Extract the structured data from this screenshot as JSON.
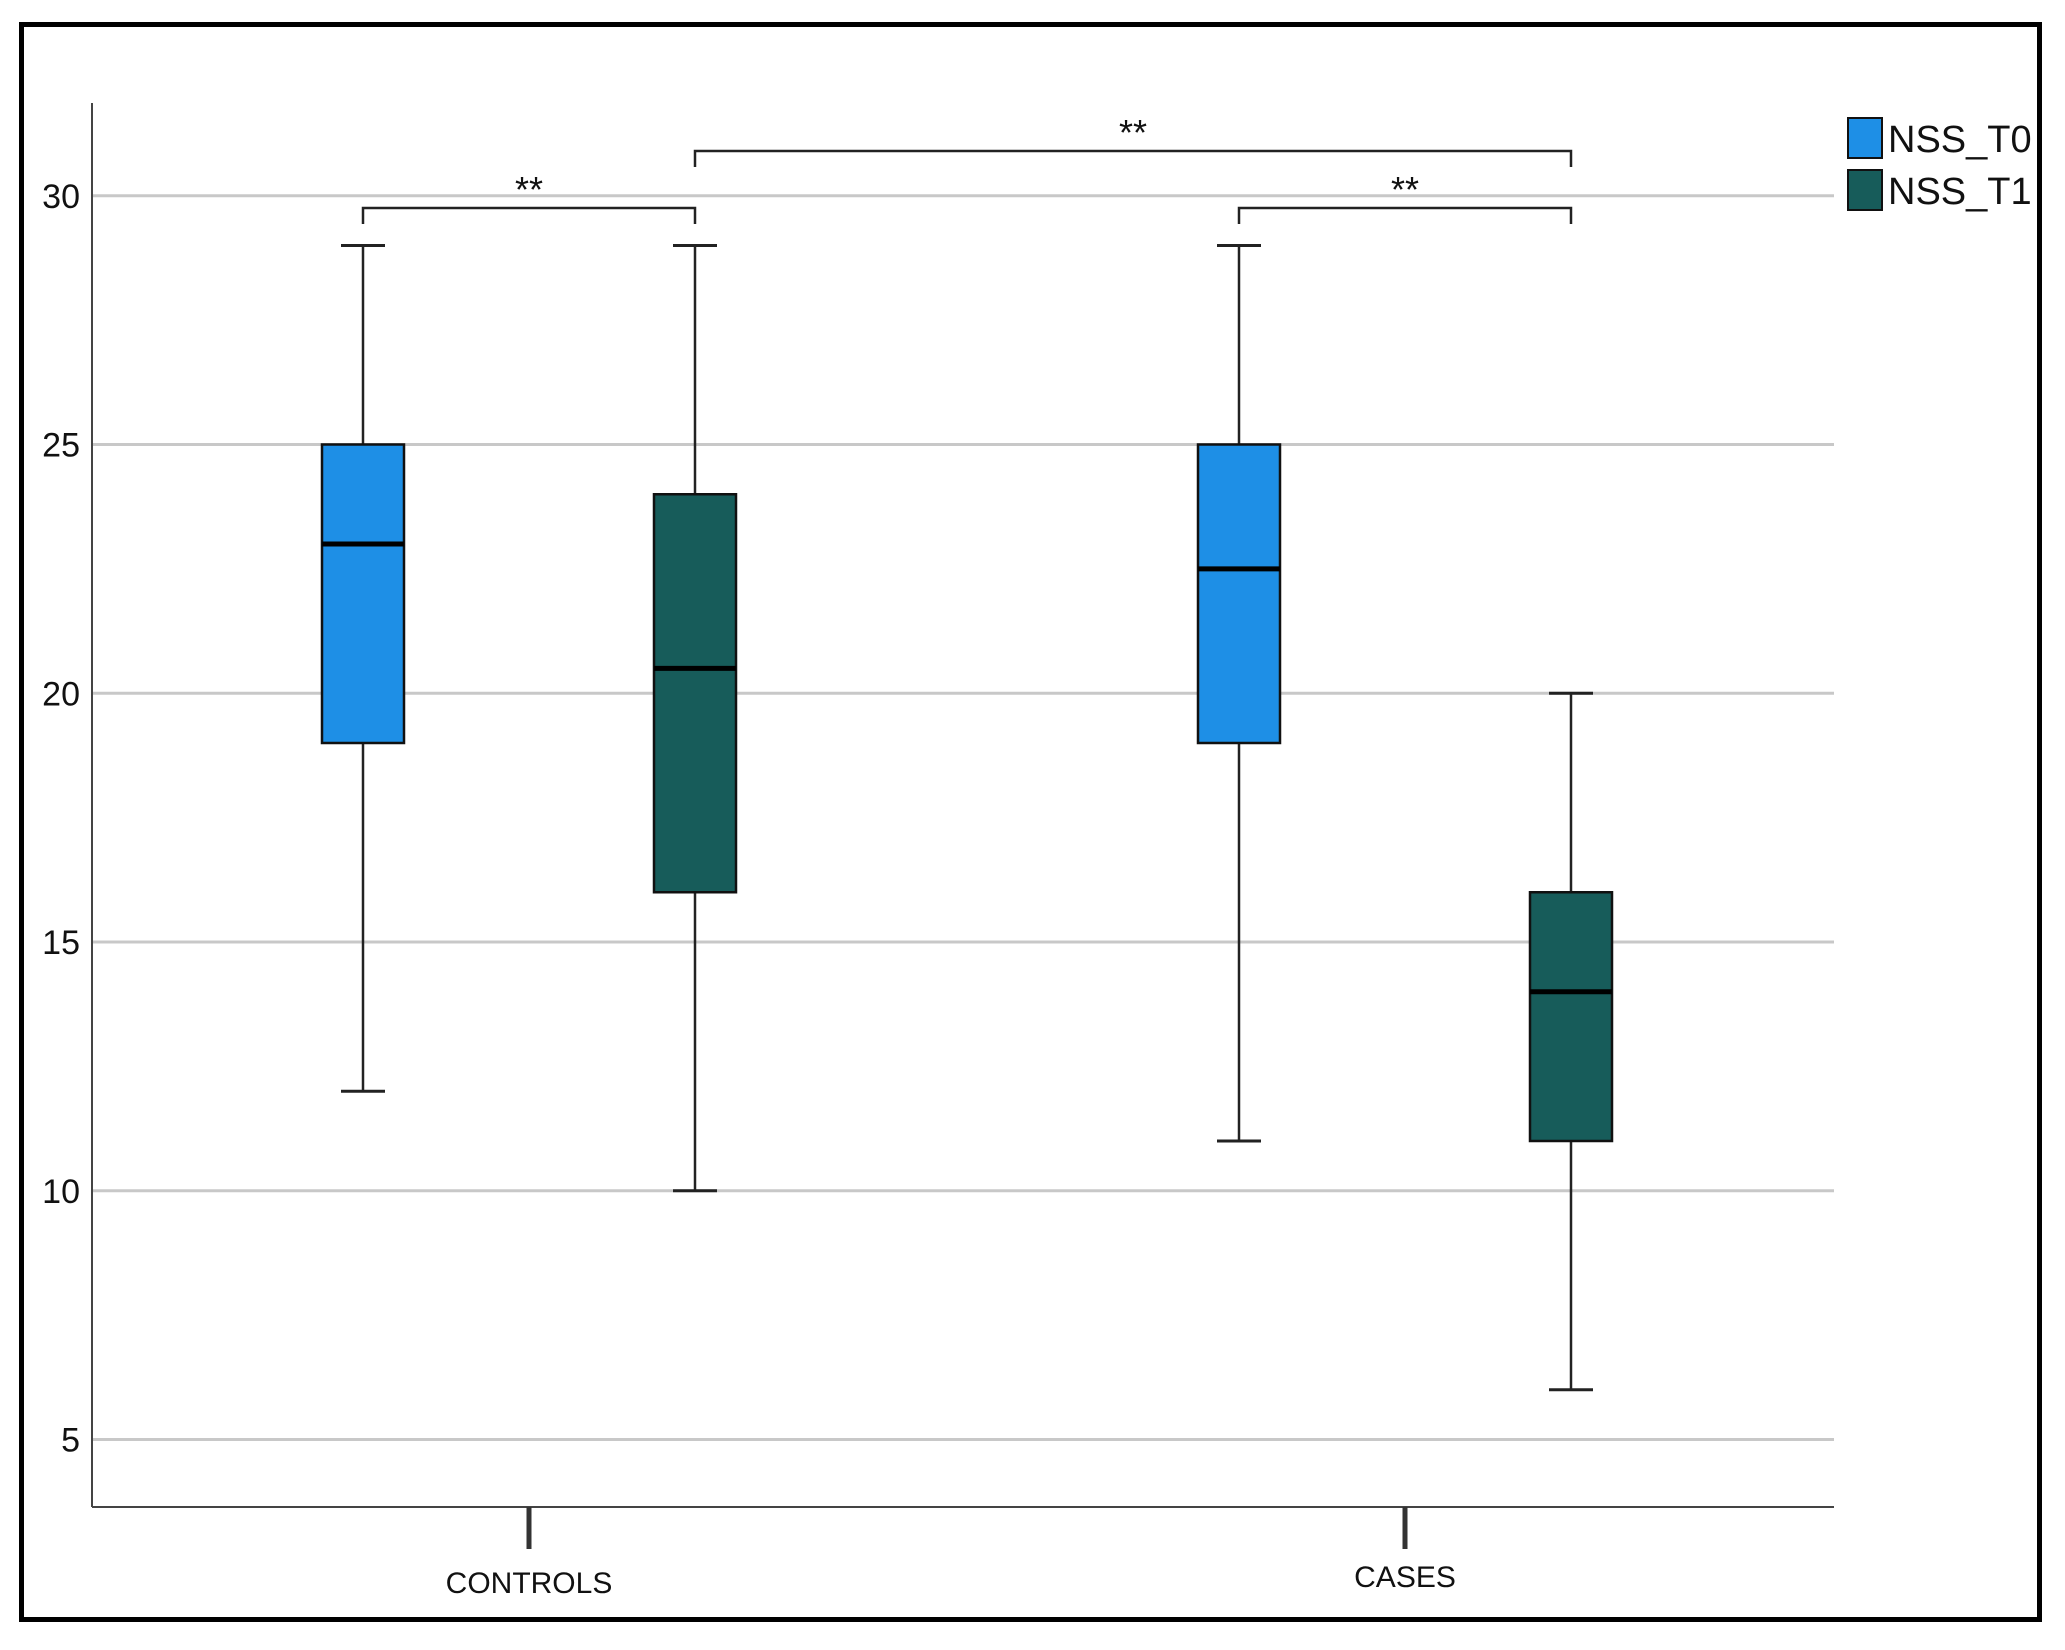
{
  "chart_data": {
    "type": "boxplot",
    "title": "",
    "xlabel": "",
    "ylabel": "",
    "ylim": [
      3.7,
      31.5
    ],
    "yticks": [
      5,
      10,
      15,
      20,
      25,
      30
    ],
    "grid": true,
    "legend_position": "top-right",
    "categories": [
      "CONTROLS",
      "CASES"
    ],
    "series": [
      {
        "name": "NSS_T0",
        "color": "#1e8fe6",
        "boxes": [
          {
            "category": "CONTROLS",
            "min": 12,
            "q1": 19,
            "median": 23,
            "q3": 25,
            "max": 29
          },
          {
            "category": "CASES",
            "min": 11,
            "q1": 19,
            "median": 22.5,
            "q3": 25,
            "max": 29
          }
        ]
      },
      {
        "name": "NSS_T1",
        "color": "#175c5a",
        "boxes": [
          {
            "category": "CONTROLS",
            "min": 10,
            "q1": 16,
            "median": 20.5,
            "q3": 24,
            "max": 29
          },
          {
            "category": "CASES",
            "min": 6,
            "q1": 11,
            "median": 14,
            "q3": 16,
            "max": 20
          }
        ]
      }
    ],
    "annotations": [
      {
        "label": "**",
        "from": {
          "category": "CONTROLS",
          "series": "NSS_T0"
        },
        "to": {
          "category": "CONTROLS",
          "series": "NSS_T1"
        }
      },
      {
        "label": "**",
        "from": {
          "category": "CONTROLS",
          "series": "NSS_T1"
        },
        "to": {
          "category": "CASES",
          "series": "NSS_T1"
        }
      },
      {
        "label": "**",
        "from": {
          "category": "CASES",
          "series": "NSS_T0"
        },
        "to": {
          "category": "CASES",
          "series": "NSS_T1"
        }
      }
    ]
  }
}
